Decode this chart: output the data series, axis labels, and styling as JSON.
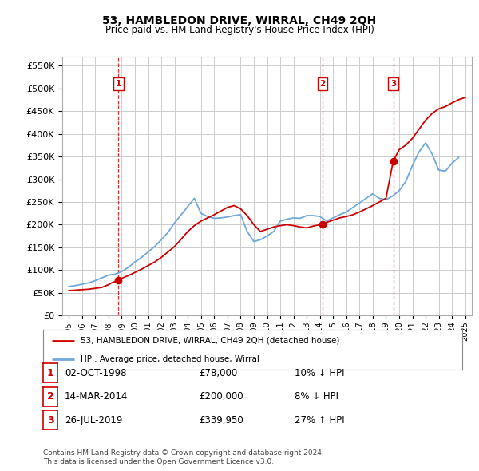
{
  "title": "53, HAMBLEDON DRIVE, WIRRAL, CH49 2QH",
  "subtitle": "Price paid vs. HM Land Registry's House Price Index (HPI)",
  "legend_house": "53, HAMBLEDON DRIVE, WIRRAL, CH49 2QH (detached house)",
  "legend_hpi": "HPI: Average price, detached house, Wirral",
  "footer1": "Contains HM Land Registry data © Crown copyright and database right 2024.",
  "footer2": "This data is licensed under the Open Government Licence v3.0.",
  "sales": [
    {
      "num": 1,
      "date": "02-OCT-1998",
      "x": 1998.75,
      "price": 78000,
      "pct": "10%",
      "dir": "↓"
    },
    {
      "num": 2,
      "date": "14-MAR-2014",
      "x": 2014.2,
      "price": 200000,
      "pct": "8%",
      "dir": "↓"
    },
    {
      "num": 3,
      "date": "26-JUL-2019",
      "x": 2019.55,
      "price": 339950,
      "pct": "27%",
      "dir": "↑"
    }
  ],
  "hpi_color": "#6fa8dc",
  "house_color": "#cc0000",
  "vline_color": "#cc0000",
  "dot_color": "#cc0000",
  "background": "#ffffff",
  "grid_color": "#cccccc",
  "ylim": [
    0,
    570000
  ],
  "yticks": [
    0,
    50000,
    100000,
    150000,
    200000,
    250000,
    300000,
    350000,
    400000,
    450000,
    500000,
    550000
  ],
  "xlim": [
    1994.5,
    2025.5
  ],
  "xticks": [
    1995,
    1996,
    1997,
    1998,
    1999,
    2000,
    2001,
    2002,
    2003,
    2004,
    2005,
    2006,
    2007,
    2008,
    2009,
    2010,
    2011,
    2012,
    2013,
    2014,
    2015,
    2016,
    2017,
    2018,
    2019,
    2020,
    2021,
    2022,
    2023,
    2024,
    2025
  ],
  "hpi_x": [
    1995.0,
    1995.5,
    1996.0,
    1996.5,
    1997.0,
    1997.5,
    1998.0,
    1998.5,
    1999.0,
    1999.5,
    2000.0,
    2000.5,
    2001.0,
    2001.5,
    2002.0,
    2002.5,
    2003.0,
    2003.5,
    2004.0,
    2004.5,
    2005.0,
    2005.5,
    2006.0,
    2006.5,
    2007.0,
    2007.5,
    2008.0,
    2008.5,
    2009.0,
    2009.5,
    2010.0,
    2010.5,
    2011.0,
    2011.5,
    2012.0,
    2012.5,
    2013.0,
    2013.5,
    2014.0,
    2014.5,
    2015.0,
    2015.5,
    2016.0,
    2016.5,
    2017.0,
    2017.5,
    2018.0,
    2018.5,
    2019.0,
    2019.5,
    2020.0,
    2020.5,
    2021.0,
    2021.5,
    2022.0,
    2022.5,
    2023.0,
    2023.5,
    2024.0,
    2024.5
  ],
  "hpi_y": [
    64000,
    66000,
    69000,
    72000,
    77000,
    83000,
    89000,
    91000,
    97000,
    106000,
    118000,
    128000,
    140000,
    152000,
    167000,
    183000,
    204000,
    222000,
    240000,
    258000,
    225000,
    218000,
    214000,
    215000,
    217000,
    220000,
    222000,
    185000,
    163000,
    167000,
    175000,
    185000,
    208000,
    212000,
    215000,
    214000,
    220000,
    220000,
    218000,
    208000,
    215000,
    222000,
    228000,
    238000,
    248000,
    258000,
    268000,
    258000,
    255000,
    263000,
    275000,
    295000,
    330000,
    360000,
    380000,
    355000,
    320000,
    318000,
    335000,
    348000
  ],
  "house_x": [
    1995.0,
    1995.5,
    1996.0,
    1996.5,
    1997.0,
    1997.5,
    1998.0,
    1998.25,
    1998.5,
    1998.75,
    1999.0,
    1999.5,
    2000.0,
    2000.5,
    2001.0,
    2001.5,
    2002.0,
    2002.5,
    2003.0,
    2003.5,
    2004.0,
    2004.5,
    2005.0,
    2005.5,
    2006.0,
    2006.5,
    2007.0,
    2007.5,
    2008.0,
    2008.5,
    2009.0,
    2009.5,
    2010.0,
    2010.5,
    2011.0,
    2011.5,
    2012.0,
    2012.5,
    2013.0,
    2013.5,
    2014.0,
    2014.2,
    2014.5,
    2015.0,
    2015.5,
    2016.0,
    2016.5,
    2017.0,
    2017.5,
    2018.0,
    2018.5,
    2019.0,
    2019.55,
    2020.0,
    2020.5,
    2021.0,
    2021.5,
    2022.0,
    2022.5,
    2023.0,
    2023.5,
    2024.0,
    2024.5,
    2025.0
  ],
  "house_y": [
    55000,
    56000,
    57000,
    58000,
    60000,
    62000,
    68000,
    72000,
    75000,
    78000,
    82000,
    88000,
    95000,
    102000,
    110000,
    118000,
    128000,
    140000,
    152000,
    168000,
    185000,
    198000,
    208000,
    215000,
    222000,
    230000,
    238000,
    242000,
    235000,
    220000,
    200000,
    185000,
    190000,
    195000,
    198000,
    200000,
    198000,
    195000,
    193000,
    197000,
    200000,
    200000,
    205000,
    210000,
    215000,
    218000,
    222000,
    228000,
    235000,
    242000,
    250000,
    258000,
    339950,
    365000,
    375000,
    390000,
    410000,
    430000,
    445000,
    455000,
    460000,
    468000,
    475000,
    480000
  ]
}
